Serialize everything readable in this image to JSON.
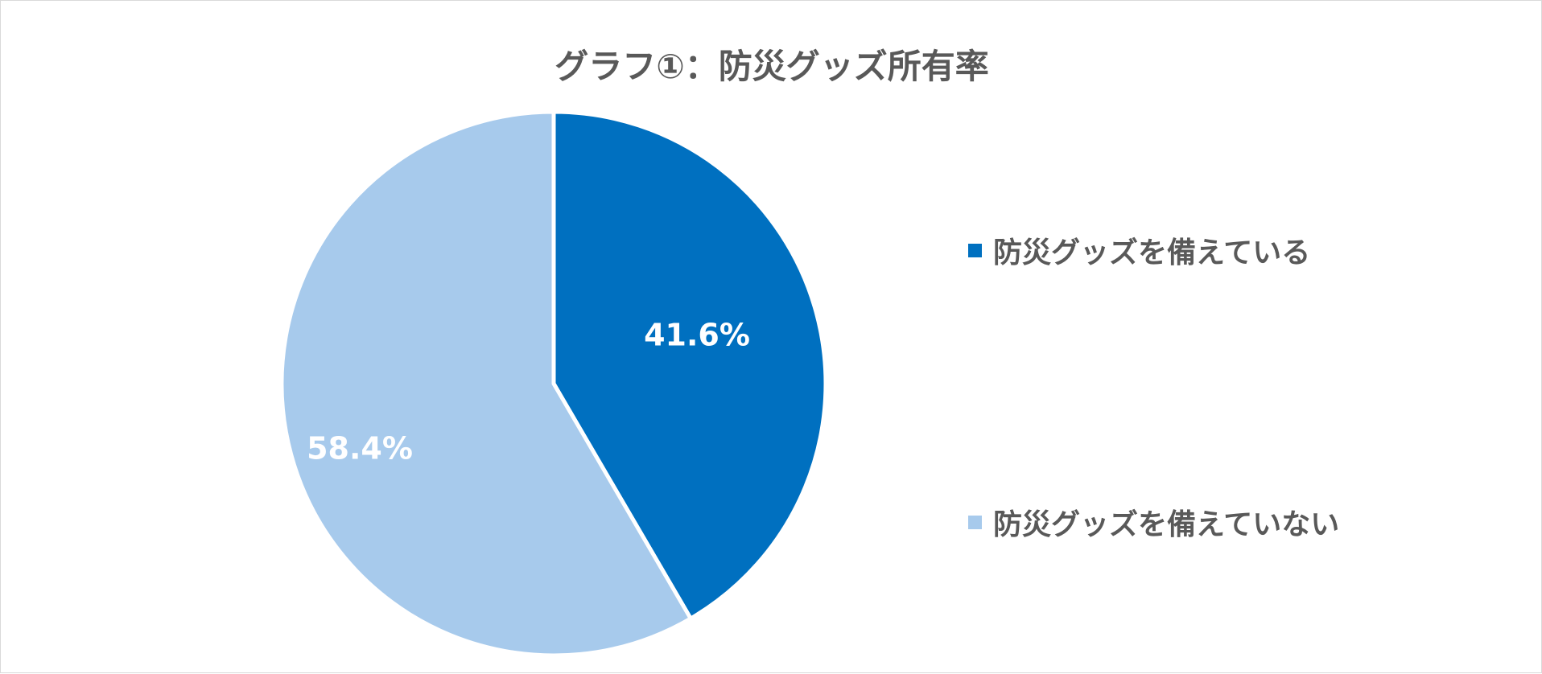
{
  "chart_data": {
    "type": "pie",
    "title": "グラフ①：防災グッズ所有率",
    "categories": [
      "防災グッズを備えている",
      "防災グッズを備えていない"
    ],
    "values": [
      41.6,
      58.4
    ],
    "data_labels": [
      "41.6%",
      "58.4%"
    ],
    "colors": [
      "#0070c0",
      "#a7caec"
    ],
    "legend_position": "right",
    "start_angle": "12 o'clock, clockwise"
  }
}
